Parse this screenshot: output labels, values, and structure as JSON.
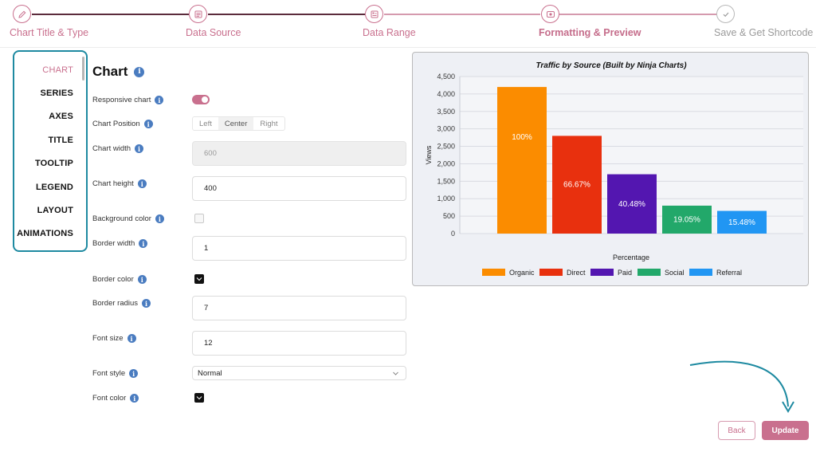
{
  "stepper": {
    "steps": [
      {
        "label": "Chart Title & Type",
        "icon": "pencil-icon",
        "state": "done"
      },
      {
        "label": "Data Source",
        "icon": "data-source-icon",
        "state": "done"
      },
      {
        "label": "Data Range",
        "icon": "data-range-icon",
        "state": "done"
      },
      {
        "label": "Formatting & Preview",
        "icon": "preview-icon",
        "state": "active"
      },
      {
        "label": "Save & Get Shortcode",
        "icon": "check-icon",
        "state": "pending"
      }
    ]
  },
  "tabs": [
    {
      "label": "CHART",
      "active": true
    },
    {
      "label": "SERIES"
    },
    {
      "label": "AXES"
    },
    {
      "label": "TITLE"
    },
    {
      "label": "TOOLTIP"
    },
    {
      "label": "LEGEND"
    },
    {
      "label": "LAYOUT"
    },
    {
      "label": "ANIMATIONS"
    }
  ],
  "panel": {
    "title": "Chart",
    "fields": {
      "responsive": {
        "label": "Responsive chart",
        "value": true
      },
      "position": {
        "label": "Chart Position",
        "options": [
          "Left",
          "Center",
          "Right"
        ],
        "selected": "Center"
      },
      "width": {
        "label": "Chart width",
        "value": "600"
      },
      "height": {
        "label": "Chart height",
        "value": "400"
      },
      "background_color": {
        "label": "Background color"
      },
      "border_width": {
        "label": "Border width",
        "value": "1"
      },
      "border_color": {
        "label": "Border color",
        "value": "#000000"
      },
      "border_radius": {
        "label": "Border radius",
        "value": "7"
      },
      "font_size": {
        "label": "Font size",
        "value": "12"
      },
      "font_style": {
        "label": "Font style",
        "value": "Normal"
      },
      "font_color": {
        "label": "Font color",
        "value": "#000000"
      }
    }
  },
  "chart_data": {
    "type": "bar",
    "title": "Traffic by Source (Built by Ninja Charts)",
    "xlabel": "Percentage",
    "ylabel": "Views",
    "ylim": [
      0,
      4500
    ],
    "yticks": [
      "0",
      "500",
      "1,000",
      "1,500",
      "2,000",
      "2,500",
      "3,000",
      "3,500",
      "4,000",
      "4,500"
    ],
    "grid": true,
    "legend_position": "bottom",
    "categories": [
      "Organic",
      "Direct",
      "Paid",
      "Social",
      "Referral"
    ],
    "values": [
      4200,
      2800,
      1700,
      800,
      650
    ],
    "data_labels": [
      "100%",
      "66.67%",
      "40.48%",
      "19.05%",
      "15.48%"
    ],
    "colors": [
      "#fb8c00",
      "#e8300e",
      "#5316b0",
      "#22a86a",
      "#2196f3"
    ]
  },
  "buttons": {
    "back": "Back",
    "update": "Update"
  },
  "colors": {
    "accent": "#c9708e",
    "highlight_border": "#1e8aa1"
  }
}
